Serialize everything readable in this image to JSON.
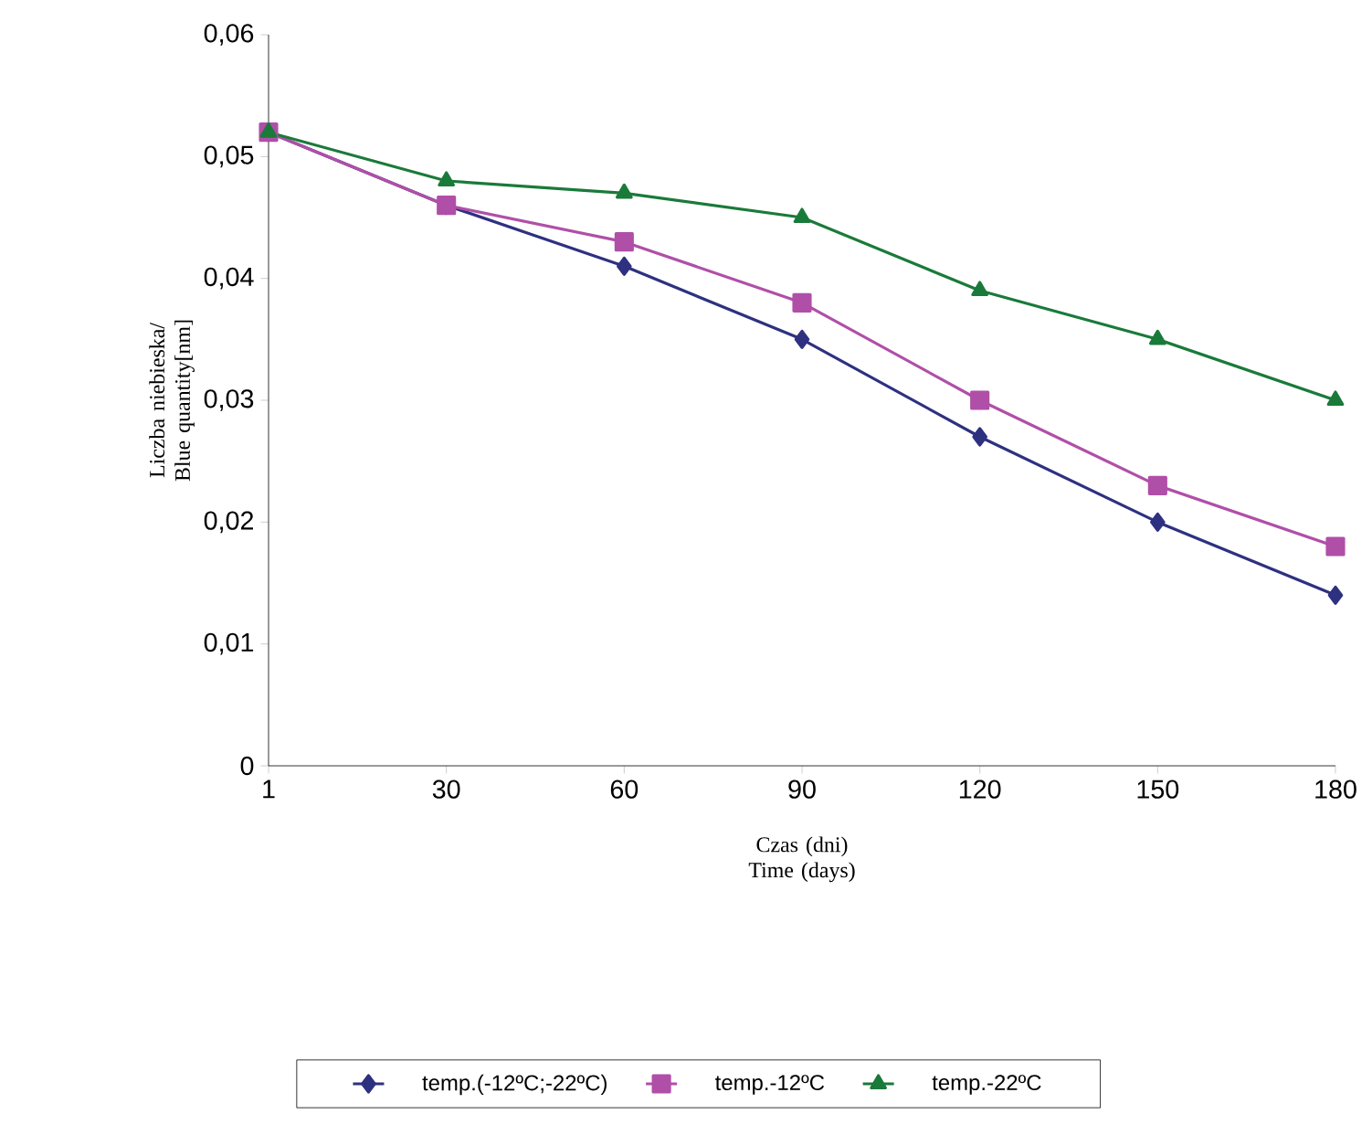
{
  "chart_data": {
    "type": "line",
    "xlabel": "Czas (dni) Time (days)",
    "ylabel": "Liczba niebieska/ Blue quantity[nm]",
    "categories": [
      "1",
      "30",
      "60",
      "90",
      "120",
      "150",
      "180"
    ],
    "ylim": [
      0,
      0.06
    ],
    "yticks": [
      0,
      {
        "value": 0.01,
        "label": "0,01"
      },
      {
        "value": 0.02,
        "label": "0,02"
      },
      {
        "value": 0.03,
        "label": "0,03"
      },
      {
        "value": 0.04,
        "label": "0,04"
      },
      {
        "value": 0.05,
        "label": "0,05"
      },
      {
        "value": 0.06,
        "label": "0,06"
      }
    ],
    "grid": false,
    "legend": "bottom",
    "line_style": "solid",
    "series": [
      {
        "name": "temp.(-12ºC;-22ºC)",
        "color": "#2e3180",
        "marker": "diamond",
        "values": [
          0.052,
          0.046,
          0.041,
          0.035,
          0.027,
          0.02,
          0.014
        ]
      },
      {
        "name": "temp.-12ºC",
        "color": "#b04fa8",
        "marker": "square",
        "values": [
          0.052,
          0.046,
          0.043,
          0.038,
          0.03,
          0.023,
          0.018
        ]
      },
      {
        "name": "temp.-22ºC",
        "color": "#1a7a3a",
        "marker": "triangle",
        "values": [
          0.052,
          0.048,
          0.047,
          0.045,
          0.039,
          0.035,
          0.03
        ]
      }
    ]
  }
}
